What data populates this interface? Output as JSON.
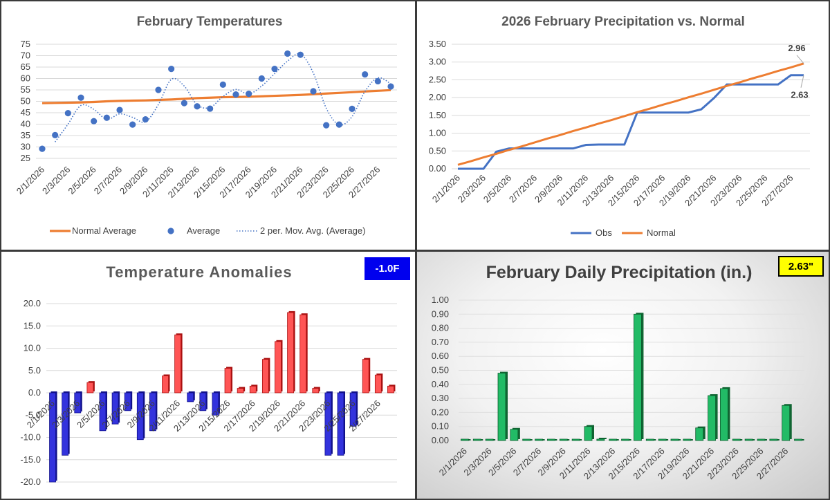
{
  "colors": {
    "orange": "#ed7d31",
    "blue": "#4472c4",
    "grid": "#d9d9d9",
    "anom_pos": "#ff5555",
    "anom_neg": "#3333dd",
    "precip": "#22bb66"
  },
  "chart_data": [
    {
      "id": "temps",
      "type": "line",
      "title": "February Temperatures",
      "x": [
        "2/1/2026",
        "2/2/2026",
        "2/3/2026",
        "2/4/2026",
        "2/5/2026",
        "2/6/2026",
        "2/7/2026",
        "2/8/2026",
        "2/9/2026",
        "2/10/2026",
        "2/11/2026",
        "2/12/2026",
        "2/13/2026",
        "2/14/2026",
        "2/15/2026",
        "2/16/2026",
        "2/17/2026",
        "2/18/2026",
        "2/19/2026",
        "2/20/2026",
        "2/21/2026",
        "2/22/2026",
        "2/23/2026",
        "2/24/2026",
        "2/25/2026",
        "2/26/2026",
        "2/27/2026",
        "2/28/2026"
      ],
      "xticks": [
        "2/1/2026",
        "2/3/2026",
        "2/5/2026",
        "2/7/2026",
        "2/9/2026",
        "2/11/2026",
        "2/13/2026",
        "2/15/2026",
        "2/17/2026",
        "2/19/2026",
        "2/21/2026",
        "2/23/2026",
        "2/25/2026",
        "2/27/2026"
      ],
      "ylim": [
        25,
        75
      ],
      "yticks": [
        25,
        30,
        35,
        40,
        45,
        50,
        55,
        60,
        65,
        70,
        75
      ],
      "series": [
        {
          "name": "Normal Average",
          "style": "line",
          "values": [
            49.2,
            49.3,
            49.4,
            49.5,
            49.7,
            50.0,
            50.2,
            50.3,
            50.4,
            50.6,
            50.8,
            51.1,
            51.4,
            51.6,
            51.8,
            51.9,
            52.0,
            52.2,
            52.4,
            52.6,
            52.8,
            53.1,
            53.4,
            53.7,
            54.0,
            54.3,
            54.6,
            54.9
          ]
        },
        {
          "name": "Average",
          "style": "markers",
          "values": [
            29.2,
            35.2,
            44.8,
            51.6,
            41.3,
            42.8,
            46.2,
            39.8,
            42.1,
            55.0,
            64.2,
            49.2,
            47.8,
            46.8,
            57.3,
            53.0,
            53.3,
            60.0,
            64.2,
            70.9,
            70.4,
            54.4,
            39.5,
            39.8,
            46.7,
            61.8,
            58.8,
            56.5
          ]
        },
        {
          "name": "2 per. Mov. Avg. (Average)",
          "style": "dotted",
          "values": [
            null,
            32.2,
            40.0,
            48.2,
            46.5,
            42.1,
            44.5,
            43.0,
            41.0,
            48.6,
            59.6,
            56.7,
            48.5,
            47.3,
            52.1,
            55.2,
            53.2,
            56.7,
            62.1,
            67.6,
            70.7,
            62.4,
            47.0,
            39.7,
            43.3,
            54.3,
            60.3,
            57.7
          ]
        }
      ],
      "legend": "bottom"
    },
    {
      "id": "precip_normal",
      "type": "line",
      "title": "2026 February Precipitation vs. Normal",
      "x": [
        "2/1/2026",
        "2/2/2026",
        "2/3/2026",
        "2/4/2026",
        "2/5/2026",
        "2/6/2026",
        "2/7/2026",
        "2/8/2026",
        "2/9/2026",
        "2/10/2026",
        "2/11/2026",
        "2/12/2026",
        "2/13/2026",
        "2/14/2026",
        "2/15/2026",
        "2/16/2026",
        "2/17/2026",
        "2/18/2026",
        "2/19/2026",
        "2/20/2026",
        "2/21/2026",
        "2/22/2026",
        "2/23/2026",
        "2/24/2026",
        "2/25/2026",
        "2/26/2026",
        "2/27/2026",
        "2/28/2026"
      ],
      "xticks": [
        "2/1/2026",
        "2/3/2026",
        "2/5/2026",
        "2/7/2026",
        "2/9/2026",
        "2/11/2026",
        "2/13/2026",
        "2/15/2026",
        "2/17/2026",
        "2/19/2026",
        "2/21/2026",
        "2/23/2026",
        "2/25/2026",
        "2/27/2026"
      ],
      "ylim": [
        0,
        3.5
      ],
      "yticks": [
        "0.00",
        "0.50",
        "1.00",
        "1.50",
        "2.00",
        "2.50",
        "3.00",
        "3.50"
      ],
      "series": [
        {
          "name": "Obs",
          "values": [
            0.0,
            0.0,
            0.0,
            0.48,
            0.57,
            0.57,
            0.57,
            0.57,
            0.57,
            0.57,
            0.67,
            0.68,
            0.68,
            0.68,
            1.58,
            1.58,
            1.58,
            1.58,
            1.58,
            1.67,
            1.99,
            2.37,
            2.37,
            2.37,
            2.37,
            2.37,
            2.63,
            2.63
          ]
        },
        {
          "name": "Normal",
          "values": [
            0.11,
            0.21,
            0.32,
            0.42,
            0.53,
            0.63,
            0.74,
            0.85,
            0.95,
            1.06,
            1.16,
            1.27,
            1.37,
            1.48,
            1.59,
            1.69,
            1.8,
            1.9,
            2.01,
            2.11,
            2.22,
            2.33,
            2.43,
            2.54,
            2.64,
            2.75,
            2.85,
            2.96
          ]
        }
      ],
      "annotations": [
        {
          "label": "2.96",
          "series": "Normal"
        },
        {
          "label": "2.63",
          "series": "Obs"
        }
      ],
      "legend": "bottom"
    },
    {
      "id": "anomalies",
      "type": "bar",
      "title": "Temperature Anomalies",
      "badge": "-1.0F",
      "x": [
        "2/1/2026",
        "2/2/2026",
        "2/3/2026",
        "2/4/2026",
        "2/5/2026",
        "2/6/2026",
        "2/7/2026",
        "2/8/2026",
        "2/9/2026",
        "2/10/2026",
        "2/11/2026",
        "2/12/2026",
        "2/13/2026",
        "2/14/2026",
        "2/15/2026",
        "2/16/2026",
        "2/17/2026",
        "2/18/2026",
        "2/19/2026",
        "2/20/2026",
        "2/21/2026",
        "2/22/2026",
        "2/23/2026",
        "2/24/2026",
        "2/25/2026",
        "2/26/2026",
        "2/27/2026",
        "2/28/2026"
      ],
      "xticks": [
        "2/1/2026",
        "2/3/2026",
        "2/5/2026",
        "2/7/2026",
        "2/9/2026",
        "2/11/2026",
        "2/13/2026",
        "2/15/2026",
        "2/17/2026",
        "2/19/2026",
        "2/21/2026",
        "2/23/2026",
        "2/25/2026",
        "2/27/2026"
      ],
      "ylim": [
        -20,
        20
      ],
      "yticks": [
        "-20.0",
        "-15.0",
        "-10.0",
        "-5.0",
        "0.0",
        "5.0",
        "10.0",
        "15.0",
        "20.0"
      ],
      "values": [
        -20.0,
        -14.0,
        -4.5,
        2.3,
        -8.5,
        -7.0,
        -4.0,
        -10.5,
        -8.5,
        3.8,
        13.0,
        -2.0,
        -4.0,
        -5.0,
        5.5,
        1.0,
        1.5,
        7.5,
        11.5,
        18.0,
        17.5,
        1.0,
        -14.0,
        -14.0,
        -7.5,
        7.5,
        4.0,
        1.5
      ]
    },
    {
      "id": "daily_precip",
      "type": "bar",
      "title": "February Daily Precipitation (in.)",
      "badge": "2.63\"",
      "x": [
        "2/1/2026",
        "2/2/2026",
        "2/3/2026",
        "2/4/2026",
        "2/5/2026",
        "2/6/2026",
        "2/7/2026",
        "2/8/2026",
        "2/9/2026",
        "2/10/2026",
        "2/11/2026",
        "2/12/2026",
        "2/13/2026",
        "2/14/2026",
        "2/15/2026",
        "2/16/2026",
        "2/17/2026",
        "2/18/2026",
        "2/19/2026",
        "2/20/2026",
        "2/21/2026",
        "2/22/2026",
        "2/23/2026",
        "2/24/2026",
        "2/25/2026",
        "2/26/2026",
        "2/27/2026",
        "2/28/2026"
      ],
      "xticks": [
        "2/1/2026",
        "2/3/2026",
        "2/5/2026",
        "2/7/2026",
        "2/9/2026",
        "2/11/2026",
        "2/13/2026",
        "2/15/2026",
        "2/17/2026",
        "2/19/2026",
        "2/21/2026",
        "2/23/2026",
        "2/25/2026",
        "2/27/2026"
      ],
      "ylim": [
        0,
        1.0
      ],
      "yticks": [
        "0.00",
        "0.10",
        "0.20",
        "0.30",
        "0.40",
        "0.50",
        "0.60",
        "0.70",
        "0.80",
        "0.90",
        "1.00"
      ],
      "values": [
        0,
        0,
        0,
        0.48,
        0.08,
        0,
        0,
        0,
        0,
        0,
        0.1,
        0.01,
        0,
        0,
        0.9,
        0,
        0,
        0,
        0,
        0.09,
        0.32,
        0.37,
        0,
        0,
        0,
        0,
        0.25,
        0
      ]
    }
  ]
}
